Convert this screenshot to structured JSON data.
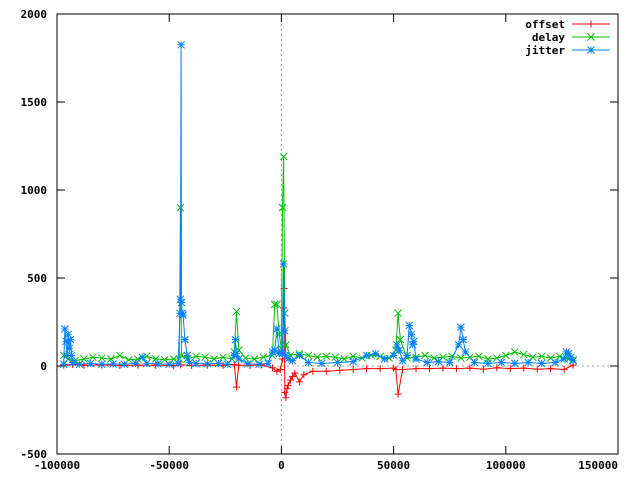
{
  "chart_data": {
    "type": "line",
    "title": "",
    "xlabel": "",
    "ylabel": "",
    "xlim": [
      -100000,
      150000
    ],
    "ylim": [
      -500,
      2000
    ],
    "x_ticks": [
      -100000,
      -50000,
      0,
      50000,
      100000,
      150000
    ],
    "y_ticks": [
      -500,
      0,
      500,
      1000,
      1500,
      2000
    ],
    "x_tick_labels": [
      "-100000",
      "-50000",
      "0",
      "50000",
      "100000",
      "150000"
    ],
    "y_tick_labels": [
      "-500",
      "0",
      "500",
      "1000",
      "1500",
      "2000"
    ],
    "grid": false,
    "zero_axes": true,
    "legend_position": "top-right",
    "series": [
      {
        "name": "offset",
        "color": "#ff0000",
        "marker": "plus",
        "points": [
          [
            -97000,
            5
          ],
          [
            -93000,
            8
          ],
          [
            -88000,
            4
          ],
          [
            -80000,
            6
          ],
          [
            -72000,
            3
          ],
          [
            -64000,
            5
          ],
          [
            -56000,
            4
          ],
          [
            -48000,
            2
          ],
          [
            -45000,
            6
          ],
          [
            -40000,
            3
          ],
          [
            -33000,
            5
          ],
          [
            -26000,
            4
          ],
          [
            -21000,
            8
          ],
          [
            -20000,
            -120
          ],
          [
            -19000,
            5
          ],
          [
            -14000,
            3
          ],
          [
            -9000,
            6
          ],
          [
            -4000,
            -10
          ],
          [
            -2000,
            -30
          ],
          [
            -500,
            -20
          ],
          [
            500,
            40
          ],
          [
            1000,
            330
          ],
          [
            1200,
            440
          ],
          [
            1500,
            -150
          ],
          [
            2000,
            -180
          ],
          [
            2500,
            -130
          ],
          [
            3000,
            -110
          ],
          [
            4000,
            -80
          ],
          [
            5000,
            -60
          ],
          [
            6000,
            -40
          ],
          [
            8000,
            -90
          ],
          [
            10000,
            -50
          ],
          [
            14000,
            -30
          ],
          [
            20000,
            -30
          ],
          [
            26000,
            -25
          ],
          [
            32000,
            -20
          ],
          [
            38000,
            -15
          ],
          [
            44000,
            -15
          ],
          [
            50000,
            -12
          ],
          [
            51000,
            -20
          ],
          [
            52000,
            -160
          ],
          [
            54000,
            -20
          ],
          [
            60000,
            -15
          ],
          [
            66000,
            -15
          ],
          [
            72000,
            -12
          ],
          [
            78000,
            -15
          ],
          [
            84000,
            -12
          ],
          [
            90000,
            -18
          ],
          [
            96000,
            -10
          ],
          [
            102000,
            -15
          ],
          [
            108000,
            -12
          ],
          [
            114000,
            -18
          ],
          [
            120000,
            -15
          ],
          [
            126000,
            -20
          ],
          [
            130000,
            5
          ]
        ]
      },
      {
        "name": "delay",
        "color": "#00c000",
        "marker": "cross",
        "points": [
          [
            -97000,
            60
          ],
          [
            -95000,
            40
          ],
          [
            -92000,
            30
          ],
          [
            -88000,
            40
          ],
          [
            -84000,
            50
          ],
          [
            -80000,
            45
          ],
          [
            -76000,
            40
          ],
          [
            -72000,
            60
          ],
          [
            -68000,
            35
          ],
          [
            -64000,
            40
          ],
          [
            -60000,
            55
          ],
          [
            -56000,
            40
          ],
          [
            -52000,
            35
          ],
          [
            -48000,
            40
          ],
          [
            -45500,
            40
          ],
          [
            -45000,
            900
          ],
          [
            -44500,
            60
          ],
          [
            -42000,
            40
          ],
          [
            -38000,
            55
          ],
          [
            -34000,
            50
          ],
          [
            -30000,
            40
          ],
          [
            -26000,
            50
          ],
          [
            -22000,
            40
          ],
          [
            -21000,
            80
          ],
          [
            -20000,
            310
          ],
          [
            -19000,
            90
          ],
          [
            -16000,
            45
          ],
          [
            -12000,
            40
          ],
          [
            -8000,
            50
          ],
          [
            -4000,
            60
          ],
          [
            -3000,
            350
          ],
          [
            -2000,
            350
          ],
          [
            -1000,
            180
          ],
          [
            0,
            100
          ],
          [
            500,
            900
          ],
          [
            1000,
            1190
          ],
          [
            1500,
            300
          ],
          [
            2000,
            120
          ],
          [
            4000,
            60
          ],
          [
            8000,
            70
          ],
          [
            12000,
            60
          ],
          [
            16000,
            50
          ],
          [
            20000,
            55
          ],
          [
            24000,
            50
          ],
          [
            28000,
            40
          ],
          [
            32000,
            55
          ],
          [
            36000,
            45
          ],
          [
            40000,
            60
          ],
          [
            44000,
            55
          ],
          [
            48000,
            45
          ],
          [
            51000,
            90
          ],
          [
            52000,
            300
          ],
          [
            53000,
            150
          ],
          [
            56000,
            45
          ],
          [
            60000,
            50
          ],
          [
            64000,
            60
          ],
          [
            68000,
            45
          ],
          [
            72000,
            50
          ],
          [
            76000,
            55
          ],
          [
            80000,
            45
          ],
          [
            84000,
            50
          ],
          [
            88000,
            55
          ],
          [
            92000,
            40
          ],
          [
            96000,
            45
          ],
          [
            100000,
            60
          ],
          [
            104000,
            80
          ],
          [
            108000,
            65
          ],
          [
            112000,
            50
          ],
          [
            116000,
            55
          ],
          [
            120000,
            45
          ],
          [
            124000,
            55
          ],
          [
            128000,
            40
          ],
          [
            130000,
            35
          ]
        ]
      },
      {
        "name": "jitter",
        "color": "#0080ff",
        "marker": "star",
        "points": [
          [
            -97000,
            10
          ],
          [
            -96500,
            210
          ],
          [
            -96000,
            140
          ],
          [
            -95500,
            60
          ],
          [
            -95000,
            180
          ],
          [
            -94500,
            100
          ],
          [
            -94000,
            150
          ],
          [
            -93500,
            60
          ],
          [
            -93000,
            20
          ],
          [
            -90000,
            10
          ],
          [
            -85000,
            15
          ],
          [
            -80000,
            10
          ],
          [
            -75000,
            12
          ],
          [
            -70000,
            10
          ],
          [
            -65000,
            15
          ],
          [
            -62000,
            50
          ],
          [
            -60000,
            15
          ],
          [
            -55000,
            12
          ],
          [
            -50000,
            10
          ],
          [
            -46000,
            15
          ],
          [
            -45200,
            300
          ],
          [
            -45000,
            380
          ],
          [
            -44700,
            1825
          ],
          [
            -44500,
            360
          ],
          [
            -44200,
            300
          ],
          [
            -43800,
            290
          ],
          [
            -43000,
            150
          ],
          [
            -42000,
            60
          ],
          [
            -41000,
            20
          ],
          [
            -38000,
            15
          ],
          [
            -33000,
            12
          ],
          [
            -28000,
            15
          ],
          [
            -24000,
            10
          ],
          [
            -21000,
            60
          ],
          [
            -20500,
            150
          ],
          [
            -20000,
            70
          ],
          [
            -19000,
            40
          ],
          [
            -15000,
            12
          ],
          [
            -10000,
            10
          ],
          [
            -6000,
            15
          ],
          [
            -4000,
            80
          ],
          [
            -3000,
            90
          ],
          [
            -2000,
            210
          ],
          [
            -1000,
            70
          ],
          [
            0,
            80
          ],
          [
            500,
            70
          ],
          [
            1000,
            580
          ],
          [
            1500,
            200
          ],
          [
            2000,
            60
          ],
          [
            3000,
            40
          ],
          [
            5000,
            30
          ],
          [
            8000,
            60
          ],
          [
            12000,
            20
          ],
          [
            18000,
            15
          ],
          [
            25000,
            20
          ],
          [
            32000,
            25
          ],
          [
            38000,
            60
          ],
          [
            42000,
            70
          ],
          [
            46000,
            40
          ],
          [
            50000,
            60
          ],
          [
            51500,
            120
          ],
          [
            52500,
            90
          ],
          [
            54000,
            30
          ],
          [
            56000,
            60
          ],
          [
            57000,
            230
          ],
          [
            58000,
            180
          ],
          [
            58500,
            120
          ],
          [
            59000,
            140
          ],
          [
            60000,
            40
          ],
          [
            65000,
            20
          ],
          [
            70000,
            25
          ],
          [
            75000,
            20
          ],
          [
            79000,
            120
          ],
          [
            80000,
            220
          ],
          [
            81000,
            150
          ],
          [
            82000,
            80
          ],
          [
            86000,
            20
          ],
          [
            92000,
            15
          ],
          [
            98000,
            20
          ],
          [
            104000,
            15
          ],
          [
            110000,
            20
          ],
          [
            116000,
            15
          ],
          [
            122000,
            20
          ],
          [
            126000,
            40
          ],
          [
            127000,
            80
          ],
          [
            128000,
            70
          ],
          [
            129000,
            50
          ],
          [
            130000,
            30
          ]
        ]
      }
    ]
  }
}
